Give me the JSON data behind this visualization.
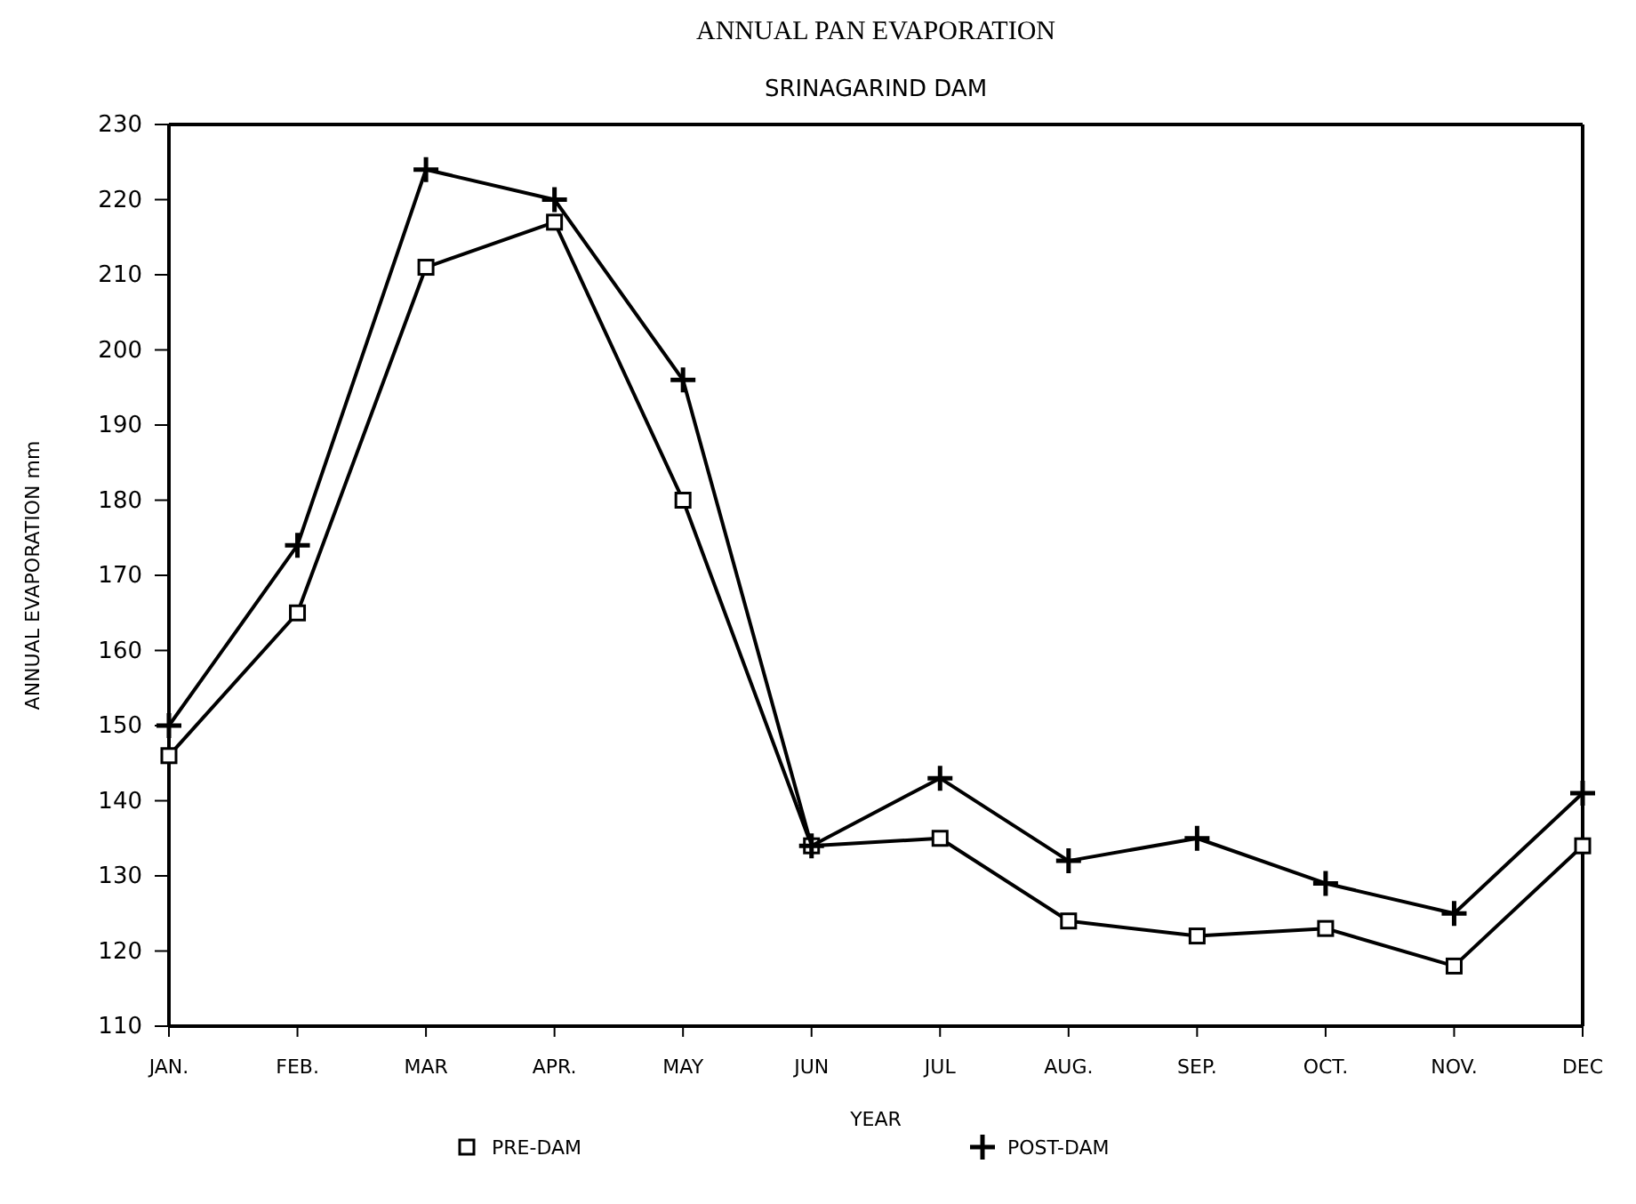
{
  "chart_data": {
    "type": "line",
    "title": "ANNUAL PAN EVAPORATION",
    "subtitle": "SRINAGARIND DAM",
    "xlabel": "YEAR",
    "ylabel": "ANNUAL EVAPORATION mm",
    "categories": [
      "JAN.",
      "FEB.",
      "MAR",
      "APR.",
      "MAY",
      "JUN",
      "JUL",
      "AUG.",
      "SEP.",
      "OCT.",
      "NOV.",
      "DEC"
    ],
    "series": [
      {
        "name": "PRE-DAM",
        "color": "#000000",
        "marker": "square",
        "values": [
          146,
          165,
          211,
          217,
          180,
          134,
          135,
          124,
          122,
          123,
          118,
          134
        ]
      },
      {
        "name": "POST-DAM",
        "color": "#000000",
        "marker": "cross",
        "values": [
          150,
          174,
          224,
          220,
          196,
          134,
          143,
          132,
          135,
          129,
          125,
          141
        ]
      }
    ],
    "ylim": [
      110,
      230
    ],
    "yticks": [
      110,
      120,
      130,
      140,
      150,
      160,
      170,
      180,
      190,
      200,
      210,
      220,
      230
    ],
    "grid": false,
    "legend": "bottom",
    "line_style": "solid"
  }
}
